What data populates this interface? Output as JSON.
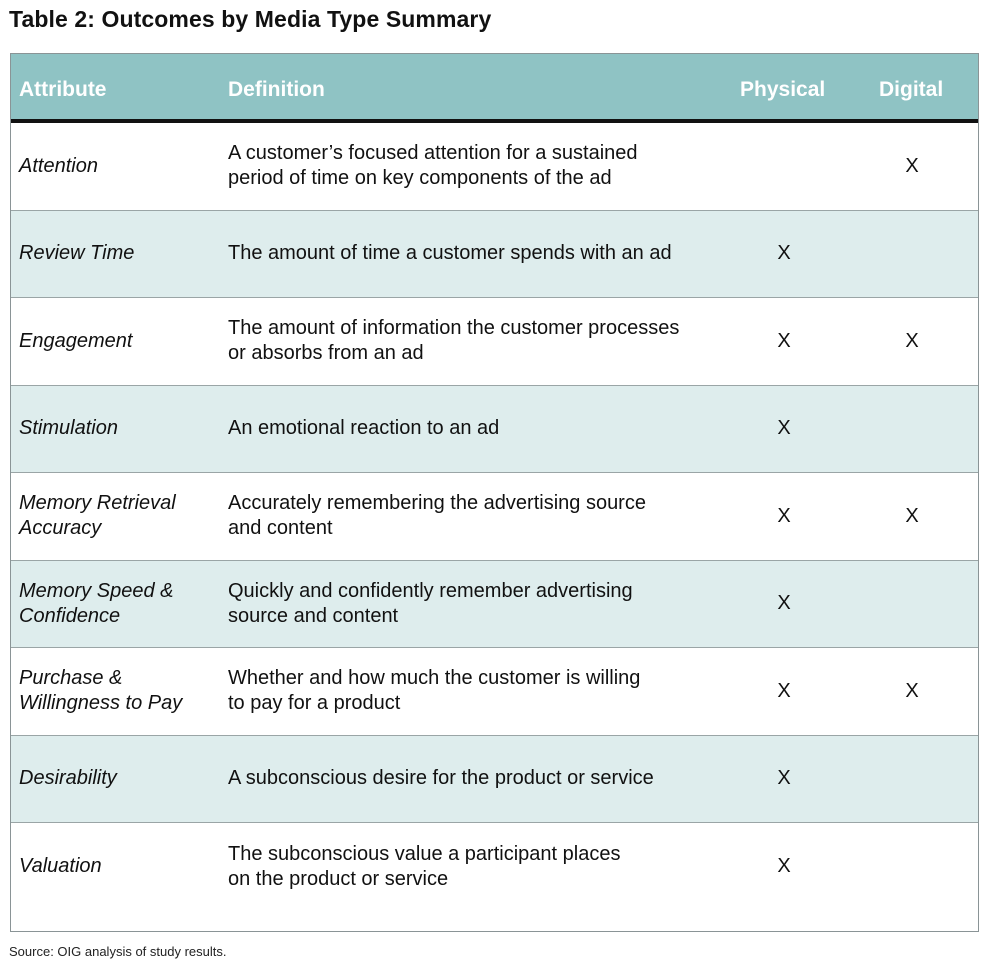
{
  "title": "Table 2: Outcomes by Media Type Summary",
  "table": {
    "headers": {
      "attribute": "Attribute",
      "definition": "Definition",
      "physical": "Physical",
      "digital": "Digital"
    },
    "rows": [
      {
        "attribute": "Attention",
        "definition": "A customer’s focused attention for a sustained\nperiod of time on key components of the ad",
        "physical": "",
        "digital": "X"
      },
      {
        "attribute": "Review Time",
        "definition": "The amount of time a customer spends with an ad",
        "physical": "X",
        "digital": ""
      },
      {
        "attribute": "Engagement",
        "definition": "The amount of information the customer processes\nor absorbs from an ad",
        "physical": "X",
        "digital": "X"
      },
      {
        "attribute": "Stimulation",
        "definition": "An emotional reaction to an ad",
        "physical": "X",
        "digital": ""
      },
      {
        "attribute": "Memory Retrieval\nAccuracy",
        "definition": "Accurately remembering the advertising source\nand content",
        "physical": "X",
        "digital": "X"
      },
      {
        "attribute": "Memory Speed &\nConfidence",
        "definition": "Quickly and confidently remember advertising\nsource and content",
        "physical": "X",
        "digital": ""
      },
      {
        "attribute": "Purchase &\nWillingness to Pay",
        "definition": "Whether and how much the customer is willing\nto pay for a product",
        "physical": "X",
        "digital": "X"
      },
      {
        "attribute": "Desirability",
        "definition": "A subconscious desire for the product or service",
        "physical": "X",
        "digital": ""
      },
      {
        "attribute": "Valuation",
        "definition": "The subconscious value a participant places\non the product or service",
        "physical": "X",
        "digital": ""
      }
    ]
  },
  "source": "Source: OIG analysis of study results.",
  "colors": {
    "header_bg": "#8fc3c4",
    "header_text": "#ffffff",
    "row_shade": "#deeded"
  }
}
